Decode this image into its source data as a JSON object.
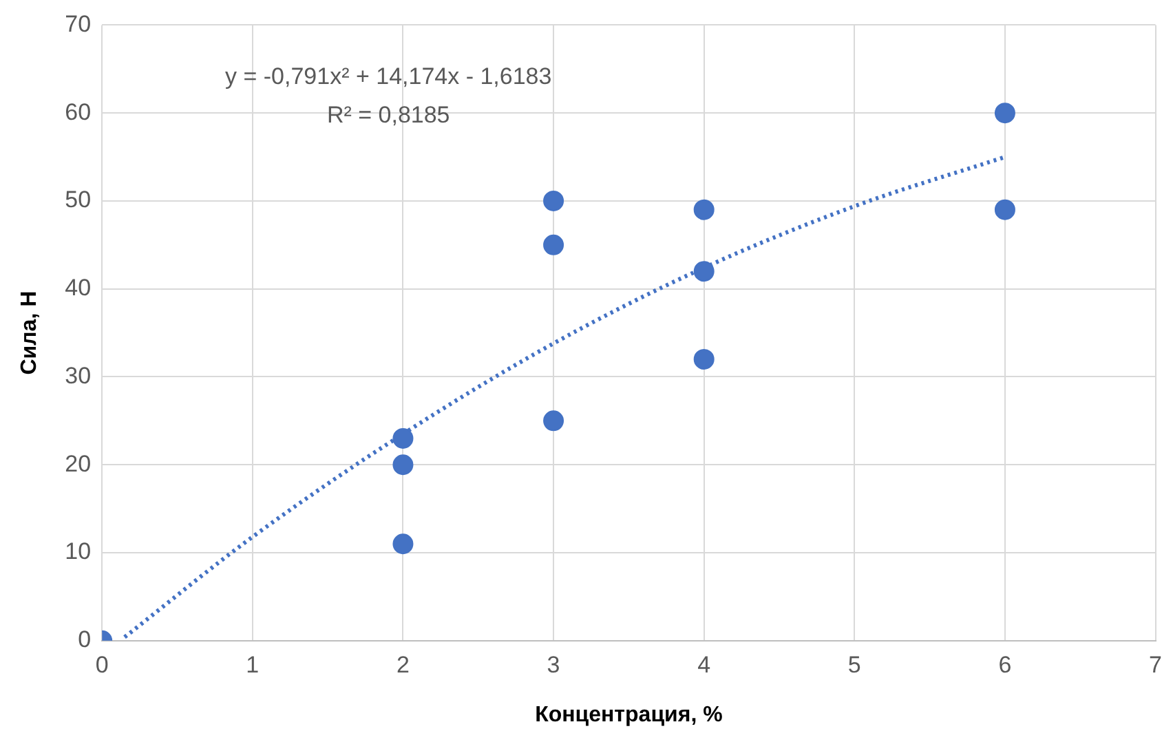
{
  "chart_data": {
    "type": "scatter",
    "xlabel": "Концентрация, %",
    "ylabel": "Сила, Н",
    "xlim": [
      0,
      7
    ],
    "xticks": [
      0,
      1,
      2,
      3,
      4,
      5,
      6,
      7
    ],
    "ylim": [
      0,
      70
    ],
    "yticks": [
      0,
      10,
      20,
      30,
      40,
      50,
      60,
      70
    ],
    "grid": true,
    "legend": false,
    "marker": "circle",
    "annotations": [
      "y = -0,791x² + 14,174x - 1,6183",
      "R² = 0,8185"
    ],
    "series": [
      {
        "type": "scatter",
        "color": "#4472c4",
        "x": [
          0,
          2,
          2,
          2,
          3,
          3,
          3,
          4,
          4,
          4,
          6,
          6
        ],
        "values": [
          0,
          23,
          20,
          11,
          50,
          45,
          25,
          49,
          42,
          32,
          60,
          49
        ]
      },
      {
        "type": "line",
        "color": "#4472c4",
        "line_style": "dotted",
        "marker": "none",
        "x": [
          0.15,
          1,
          2,
          3,
          4,
          5,
          6
        ],
        "values": [
          0.4,
          11.8,
          23.5,
          33.8,
          42.4,
          49.4,
          55.0
        ]
      }
    ]
  }
}
